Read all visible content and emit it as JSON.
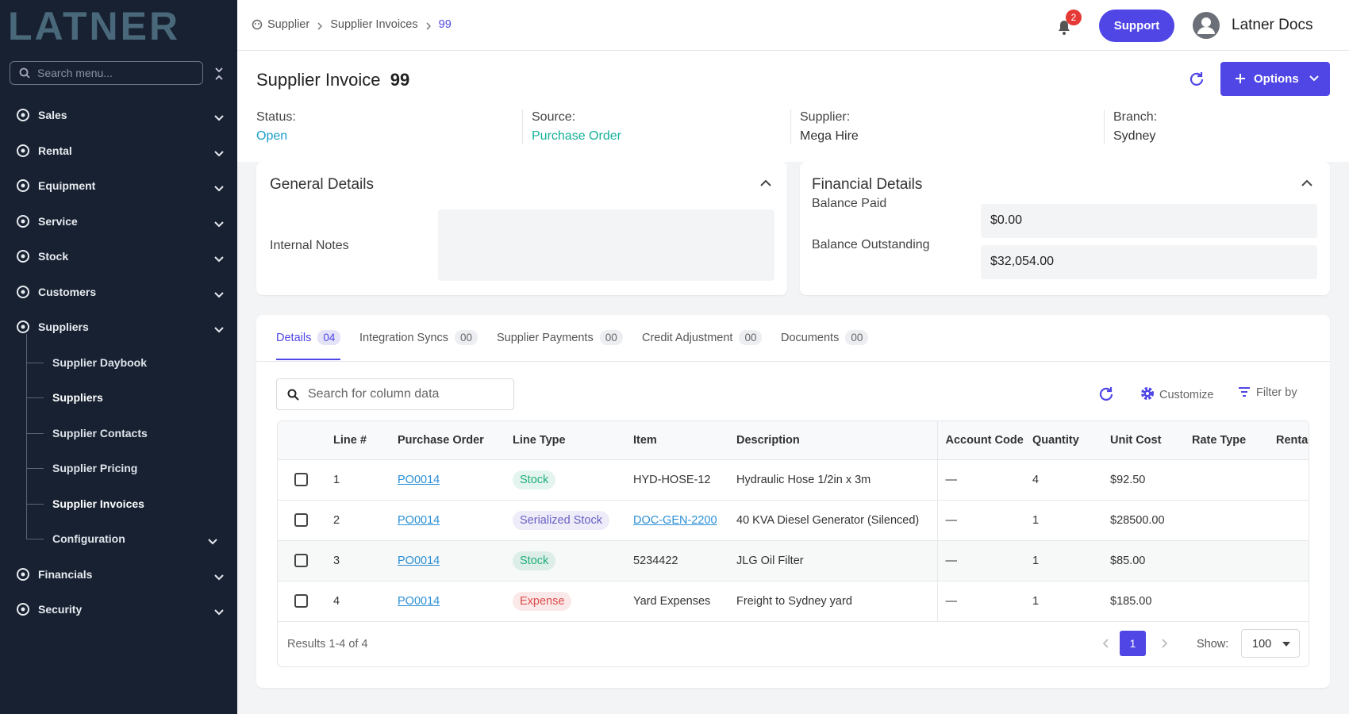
{
  "sidebar": {
    "brand": "LATNER",
    "search_placeholder": "Search menu...",
    "menu": [
      {
        "label": "Sales"
      },
      {
        "label": "Rental"
      },
      {
        "label": "Equipment"
      },
      {
        "label": "Service"
      },
      {
        "label": "Stock"
      },
      {
        "label": "Customers"
      },
      {
        "label": "Suppliers",
        "expanded": true,
        "children": [
          {
            "label": "Supplier Daybook"
          },
          {
            "label": "Suppliers",
            "bold": true
          },
          {
            "label": "Supplier Contacts"
          },
          {
            "label": "Supplier Pricing"
          },
          {
            "label": "Supplier Invoices",
            "bold": true
          },
          {
            "label": "Configuration",
            "expandable": true
          }
        ]
      },
      {
        "label": "Financials"
      },
      {
        "label": "Security"
      }
    ]
  },
  "topbar": {
    "breadcrumb": [
      "Supplier",
      "Supplier Invoices",
      "99"
    ],
    "notification_count": "2",
    "support": "Support",
    "user": "Latner Docs"
  },
  "header": {
    "title": "Supplier Invoice",
    "number": "99",
    "options": "Options",
    "fields": [
      {
        "label": "Status:",
        "value": "Open",
        "color": "#1a9fc9"
      },
      {
        "label": "Source:",
        "value": "Purchase Order",
        "color": "#14b19a"
      },
      {
        "label": "Supplier:",
        "value": "Mega Hire",
        "color": "#333333"
      },
      {
        "label": "Branch:",
        "value": "Sydney",
        "color": "#333333"
      }
    ]
  },
  "general": {
    "title": "General Details",
    "internal_notes_label": "Internal Notes"
  },
  "financial": {
    "title": "Financial Details",
    "fields": [
      {
        "label": "Balance Paid",
        "value": "$0.00"
      },
      {
        "label": "Balance Outstanding",
        "value": "$32,054.00"
      }
    ]
  },
  "tabs": [
    {
      "label": "Details",
      "count": "04",
      "active": true
    },
    {
      "label": "Integration Syncs",
      "count": "00"
    },
    {
      "label": "Supplier Payments",
      "count": "00"
    },
    {
      "label": "Credit Adjustment",
      "count": "00"
    },
    {
      "label": "Documents",
      "count": "00"
    }
  ],
  "table": {
    "search_placeholder": "Search for column data",
    "customize": "Customize",
    "filter": "Filter by",
    "columns": [
      "Line #",
      "Purchase Order",
      "Line Type",
      "Item",
      "Description",
      "Account Code",
      "Quantity",
      "Unit Cost",
      "Rate Type",
      "Rental"
    ],
    "rows": [
      {
        "line": "1",
        "purchase_order": "PO0014",
        "line_type": "Stock",
        "line_type_color": "#1fae78",
        "item": "HYD-HOSE-12",
        "description": "Hydraulic Hose 1/2in x 3m",
        "account_code": "—",
        "quantity": "4",
        "unit_cost": "$92.50"
      },
      {
        "line": "2",
        "purchase_order": "PO0014",
        "line_type": "Serialized Stock",
        "line_type_color": "#6a5fc4",
        "item": "DOC-GEN-2200",
        "item_link": true,
        "description": "40 KVA Diesel Generator (Silenced)",
        "account_code": "—",
        "quantity": "1",
        "unit_cost": "$28500.00"
      },
      {
        "line": "3",
        "purchase_order": "PO0014",
        "line_type": "Stock",
        "line_type_color": "#1fae78",
        "item": "5234422",
        "description": "JLG Oil Filter",
        "account_code": "—",
        "quantity": "1",
        "unit_cost": "$85.00"
      },
      {
        "line": "4",
        "purchase_order": "PO0014",
        "line_type": "Expense",
        "line_type_color": "#dd4a4a",
        "item": "Yard Expenses",
        "description": "Freight to Sydney yard",
        "account_code": "—",
        "quantity": "1",
        "unit_cost": "$185.00"
      }
    ],
    "results": "Results 1-4 of 4",
    "page": "1",
    "show_label": "Show:",
    "page_size": "100"
  }
}
